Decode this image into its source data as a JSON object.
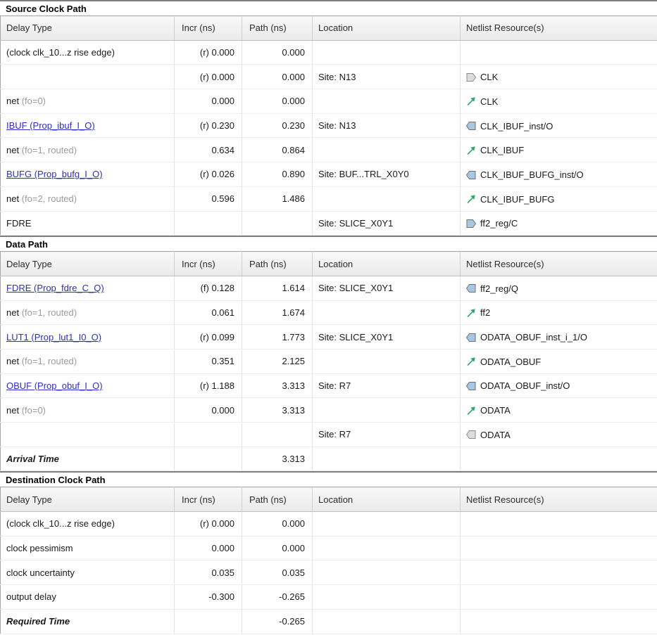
{
  "colors": {
    "link_blue": "#2b2bd5",
    "muted_gray": "#9c9c9c",
    "net_green": "#2fa866",
    "pin_blue_fill": "#a8c7e2",
    "pin_stroke": "#6f6f6f",
    "port_gray_fill": "#dcdcdc",
    "port_stroke": "#8a8a8a",
    "header_bg": "#f0f0f0"
  },
  "columns": [
    "Delay Type",
    "Incr (ns)",
    "Path (ns)",
    "Location",
    "Netlist Resource(s)"
  ],
  "sections": [
    {
      "title": "Source Clock Path",
      "rows": [
        {
          "delay": "(clock clk_10...z rise edge)",
          "delay_suffix": "",
          "link": false,
          "emphasis": false,
          "incr": "(r) 0.000",
          "path": "0.000",
          "location": "",
          "icon": "",
          "resource": ""
        },
        {
          "delay": "",
          "delay_suffix": "",
          "link": false,
          "emphasis": false,
          "incr": "(r) 0.000",
          "path": "0.000",
          "location": "Site: N13",
          "icon": "port-in",
          "resource": "CLK"
        },
        {
          "delay": "net",
          "delay_suffix": " (fo=0)",
          "link": false,
          "emphasis": false,
          "incr": "0.000",
          "path": "0.000",
          "location": "",
          "icon": "net",
          "resource": "CLK"
        },
        {
          "delay": "IBUF (Prop_ibuf_I_O)",
          "delay_suffix": "",
          "link": true,
          "emphasis": false,
          "incr": "(r) 0.230",
          "path": "0.230",
          "location": "Site: N13",
          "icon": "pin-out",
          "resource": "CLK_IBUF_inst/O"
        },
        {
          "delay": "net",
          "delay_suffix": " (fo=1, routed)",
          "link": false,
          "emphasis": false,
          "incr": "0.634",
          "path": "0.864",
          "location": "",
          "icon": "net",
          "resource": "CLK_IBUF"
        },
        {
          "delay": "BUFG (Prop_bufg_I_O)",
          "delay_suffix": "",
          "link": true,
          "emphasis": false,
          "incr": "(r) 0.026",
          "path": "0.890",
          "location": "Site: BUF...TRL_X0Y0",
          "icon": "pin-out",
          "resource": "CLK_IBUF_BUFG_inst/O"
        },
        {
          "delay": "net",
          "delay_suffix": " (fo=2, routed)",
          "link": false,
          "emphasis": false,
          "incr": "0.596",
          "path": "1.486",
          "location": "",
          "icon": "net",
          "resource": "CLK_IBUF_BUFG"
        },
        {
          "delay": "FDRE",
          "delay_suffix": "",
          "link": false,
          "emphasis": false,
          "incr": "",
          "path": "",
          "location": "Site: SLICE_X0Y1",
          "icon": "pin-in",
          "resource": "ff2_reg/C"
        }
      ]
    },
    {
      "title": "Data Path",
      "rows": [
        {
          "delay": "FDRE (Prop_fdre_C_Q)",
          "delay_suffix": "",
          "link": true,
          "emphasis": false,
          "incr": "(f) 0.128",
          "path": "1.614",
          "location": "Site: SLICE_X0Y1",
          "icon": "pin-out",
          "resource": "ff2_reg/Q"
        },
        {
          "delay": "net",
          "delay_suffix": " (fo=1, routed)",
          "link": false,
          "emphasis": false,
          "incr": "0.061",
          "path": "1.674",
          "location": "",
          "icon": "net",
          "resource": "ff2"
        },
        {
          "delay": "LUT1 (Prop_lut1_I0_O)",
          "delay_suffix": "",
          "link": true,
          "emphasis": false,
          "incr": "(r) 0.099",
          "path": "1.773",
          "location": "Site: SLICE_X0Y1",
          "icon": "pin-out",
          "resource": "ODATA_OBUF_inst_i_1/O"
        },
        {
          "delay": "net",
          "delay_suffix": " (fo=1, routed)",
          "link": false,
          "emphasis": false,
          "incr": "0.351",
          "path": "2.125",
          "location": "",
          "icon": "net",
          "resource": "ODATA_OBUF"
        },
        {
          "delay": "OBUF (Prop_obuf_I_O)",
          "delay_suffix": "",
          "link": true,
          "emphasis": false,
          "incr": "(r) 1.188",
          "path": "3.313",
          "location": "Site: R7",
          "icon": "pin-out",
          "resource": "ODATA_OBUF_inst/O"
        },
        {
          "delay": "net",
          "delay_suffix": " (fo=0)",
          "link": false,
          "emphasis": false,
          "incr": "0.000",
          "path": "3.313",
          "location": "",
          "icon": "net",
          "resource": "ODATA"
        },
        {
          "delay": "",
          "delay_suffix": "",
          "link": false,
          "emphasis": false,
          "incr": "",
          "path": "",
          "location": "Site: R7",
          "icon": "port-out",
          "resource": "ODATA"
        },
        {
          "delay": "Arrival Time",
          "delay_suffix": "",
          "link": false,
          "emphasis": true,
          "incr": "",
          "path": "3.313",
          "location": "",
          "icon": "",
          "resource": ""
        }
      ]
    },
    {
      "title": "Destination Clock Path",
      "rows": [
        {
          "delay": "(clock clk_10...z rise edge)",
          "delay_suffix": "",
          "link": false,
          "emphasis": false,
          "incr": "(r) 0.000",
          "path": "0.000",
          "location": "",
          "icon": "",
          "resource": ""
        },
        {
          "delay": "clock pessimism",
          "delay_suffix": "",
          "link": false,
          "emphasis": false,
          "incr": "0.000",
          "path": "0.000",
          "location": "",
          "icon": "",
          "resource": ""
        },
        {
          "delay": "clock uncertainty",
          "delay_suffix": "",
          "link": false,
          "emphasis": false,
          "incr": "0.035",
          "path": "0.035",
          "location": "",
          "icon": "",
          "resource": ""
        },
        {
          "delay": "output delay",
          "delay_suffix": "",
          "link": false,
          "emphasis": false,
          "incr": "-0.300",
          "path": "-0.265",
          "location": "",
          "icon": "",
          "resource": ""
        },
        {
          "delay": "Required Time",
          "delay_suffix": "",
          "link": false,
          "emphasis": true,
          "incr": "",
          "path": "-0.265",
          "location": "",
          "icon": "",
          "resource": ""
        }
      ]
    }
  ]
}
